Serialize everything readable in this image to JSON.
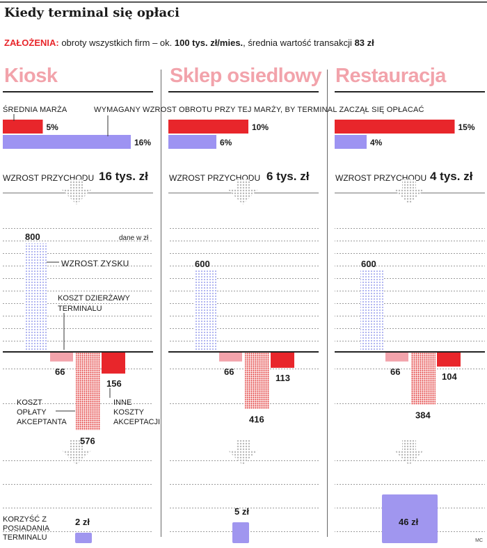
{
  "title": "Kiedy terminal się opłaci",
  "assumptions": {
    "label": "ZAŁOŻENIA:",
    "text1": " obroty wszystkich firm – ok. ",
    "bold1": "100 tys. zł/mies.",
    "text2": ", średnia wartość transakcji ",
    "bold2": "83 zł"
  },
  "labels": {
    "avg_margin": "ŚREDNIA MARŻA",
    "required_growth": "WYMAGANY WZROST OBROTU PRZY TEJ MARŻY, BY TERMINAL ZACZĄŁ SIĘ OPŁACAĆ",
    "revenue_growth": "WZROST PRZYCHODU",
    "data_unit": "dane w zł",
    "profit_growth": "WZROST ZYSKU",
    "lease_cost": "KOSZT DZIERŻAWY TERMINALU",
    "acceptance_fee": "KOSZT OPŁATY AKCEPTANTA",
    "other_costs": "INNE KOSZTY AKCEPTACJI",
    "benefit": "KORZYŚĆ Z POSIADANIA TERMINALU",
    "credit": "MC"
  },
  "colors": {
    "margin_red": "#e8262b",
    "required_purple": "#9d93f2",
    "title_pink": "#f2a3ab",
    "lease_pink": "#f2a3ab",
    "profit_dots": "#a9aef0",
    "fee_dots": "#e23b3b",
    "other_red": "#e8262b",
    "benefit_purple": "#a096ef"
  },
  "chart_data": [
    {
      "type": "bar",
      "title": "Kiosk",
      "margin_pct": "5%",
      "required_pct": "16%",
      "margin": 5,
      "required": 16,
      "revenue_growth": "16 tys. zł",
      "profit": 800,
      "lease": 66,
      "fee": 576,
      "other": 156,
      "benefit": 2,
      "profit_label": "800",
      "lease_label": "66",
      "fee_label": "576",
      "other_label": "156",
      "benefit_label": "2 zł"
    },
    {
      "type": "bar",
      "title": "Sklep osiedlowy",
      "margin_pct": "10%",
      "required_pct": "6%",
      "margin": 10,
      "required": 6,
      "revenue_growth": "6 tys. zł",
      "profit": 600,
      "lease": 66,
      "fee": 416,
      "other": 113,
      "benefit": 5,
      "profit_label": "600",
      "lease_label": "66",
      "fee_label": "416",
      "other_label": "113",
      "benefit_label": "5 zł"
    },
    {
      "type": "bar",
      "title": "Restauracja",
      "margin_pct": "15%",
      "required_pct": "4%",
      "margin": 15,
      "required": 4,
      "revenue_growth": "4 tys. zł",
      "profit": 600,
      "lease": 66,
      "fee": 384,
      "other": 104,
      "benefit": 46,
      "profit_label": "600",
      "lease_label": "66",
      "fee_label": "384",
      "other_label": "104",
      "benefit_label": "46 zł"
    }
  ]
}
